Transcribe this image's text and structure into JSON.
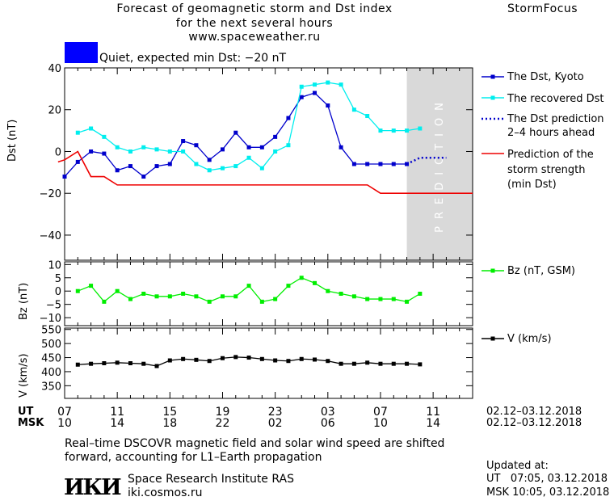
{
  "header": {
    "title_line1": "Forecast of geomagnetic storm and Dst index",
    "title_line2": "for the next several hours",
    "site": "www.spaceweather.ru",
    "brand": "StormFocus"
  },
  "status": {
    "label": "Quiet, expected min Dst: −20 nT",
    "color": "#0000ff"
  },
  "colors": {
    "dst_kyoto": "#0000cc",
    "dst_recovered": "#00eeee",
    "dst_prediction": "#0000cc",
    "storm_strength": "#ee0000",
    "bz": "#00ee00",
    "v": "#000000",
    "prediction_band": "#d9d9d9"
  },
  "chart_data": [
    {
      "type": "line",
      "panel": "dst",
      "ylabel": "Dst (nT)",
      "ylim": [
        -52,
        40
      ],
      "yticks": [
        40,
        20,
        0,
        -20,
        -40
      ],
      "xlim": [
        7,
        38
      ],
      "prediction_region_x": [
        33,
        38
      ],
      "prediction_label": "PREDICTION",
      "series": [
        {
          "name": "The Dst, Kyoto",
          "x": [
            7,
            8,
            9,
            10,
            11,
            12,
            13,
            14,
            15,
            16,
            17,
            18,
            19,
            20,
            21,
            22,
            23,
            24,
            25,
            26,
            27,
            28,
            29,
            30,
            31,
            32,
            33
          ],
          "y": [
            -12,
            -5,
            0,
            -1,
            -9,
            -7,
            -12,
            -7,
            -6,
            5,
            3,
            -4,
            1,
            9,
            2,
            2,
            7,
            16,
            26,
            28,
            22,
            2,
            -6,
            -6,
            -6,
            -6,
            -6
          ]
        },
        {
          "name": "The recovered Dst",
          "x": [
            8,
            9,
            10,
            11,
            12,
            13,
            14,
            15,
            16,
            17,
            18,
            19,
            20,
            21,
            22,
            23,
            24,
            25,
            26,
            27,
            28,
            29,
            30,
            31,
            32,
            33,
            34
          ],
          "y": [
            9,
            11,
            7,
            2,
            0,
            2,
            1,
            0,
            0,
            -6,
            -9,
            -8,
            -7,
            -3,
            -8,
            0,
            3,
            31,
            32,
            33,
            32,
            20,
            17,
            10,
            10,
            10,
            11
          ]
        },
        {
          "name": "The Dst prediction 2–4 hours ahead",
          "x": [
            33,
            34,
            35,
            36
          ],
          "y": [
            -6,
            -3,
            -3,
            -3
          ]
        },
        {
          "name": "Prediction of the storm strength (min Dst)",
          "x": [
            6.5,
            7,
            8,
            9,
            10,
            11,
            12,
            13,
            14,
            15,
            16,
            17,
            18,
            19,
            20,
            21,
            22,
            23,
            24,
            25,
            26,
            27,
            28,
            29,
            30,
            31,
            32,
            33,
            34,
            35,
            36,
            37,
            38
          ],
          "y": [
            -5,
            -4,
            0,
            -12,
            -12,
            -16,
            -16,
            -16,
            -16,
            -16,
            -16,
            -16,
            -16,
            -16,
            -16,
            -16,
            -16,
            -16,
            -16,
            -16,
            -16,
            -16,
            -16,
            -16,
            -16,
            -20,
            -20,
            -20,
            -20,
            -20,
            -20,
            -20,
            -20
          ]
        }
      ]
    },
    {
      "type": "line",
      "panel": "bz",
      "ylabel": "Bz (nT)",
      "ylim": [
        -13,
        11
      ],
      "yticks": [
        10,
        5,
        0,
        -5,
        -10
      ],
      "series": [
        {
          "name": "Bz (nT, GSM)",
          "x": [
            8,
            9,
            10,
            11,
            12,
            13,
            14,
            15,
            16,
            17,
            18,
            19,
            20,
            21,
            22,
            23,
            24,
            25,
            26,
            27,
            28,
            29,
            30,
            31,
            32,
            33,
            34
          ],
          "y": [
            0,
            2,
            -4,
            0,
            -3,
            -1,
            -2,
            -2,
            -1,
            -2,
            -4,
            -2,
            -2,
            2,
            -4,
            -3,
            2,
            5,
            3,
            0,
            -1,
            -2,
            -3,
            -3,
            -3,
            -4,
            -1
          ]
        }
      ]
    },
    {
      "type": "line",
      "panel": "v",
      "ylabel": "V (km/s)",
      "ylim": [
        305,
        555
      ],
      "yticks": [
        550,
        500,
        450,
        400,
        350
      ],
      "series": [
        {
          "name": "V (km/s)",
          "x": [
            8,
            9,
            10,
            11,
            12,
            13,
            14,
            15,
            16,
            17,
            18,
            19,
            20,
            21,
            22,
            23,
            24,
            25,
            26,
            27,
            28,
            29,
            30,
            31,
            32,
            33,
            34
          ],
          "y": [
            425,
            428,
            430,
            432,
            430,
            428,
            420,
            440,
            445,
            442,
            438,
            448,
            452,
            450,
            445,
            440,
            438,
            445,
            443,
            438,
            428,
            428,
            432,
            428,
            428,
            428,
            426
          ]
        }
      ]
    }
  ],
  "xaxis": {
    "ut_label": "UT",
    "msk_label": "MSK",
    "ut_ticks": [
      "07",
      "11",
      "15",
      "19",
      "23",
      "03",
      "07",
      "11"
    ],
    "msk_ticks": [
      "10",
      "14",
      "18",
      "22",
      "02",
      "06",
      "10",
      "14"
    ],
    "ut_range": "02.12–03.12.2018",
    "msk_range": "02.12–03.12.2018"
  },
  "legend": {
    "dst_kyoto": "The Dst, Kyoto",
    "dst_recovered": "The recovered Dst",
    "dst_pred_line1": "The Dst prediction",
    "dst_pred_line2": "2–4 hours ahead",
    "storm_line1": "Prediction of the",
    "storm_line2": "storm strength",
    "storm_line3": "(min Dst)",
    "bz": "Bz (nT, GSM)",
    "v": "V (km/s)"
  },
  "footer": {
    "note_line1": "Real–time DSCOVR magnetic field and solar wind speed are shifted",
    "note_line2": "forward, accounting for L1–Earth propagation",
    "logo_text": "ИКИ",
    "institute": "Space Research Institute RAS",
    "institute_url": "iki.cosmos.ru",
    "updated_label": "Updated at:",
    "updated_ut": "UT   07:05, 03.12.2018",
    "updated_msk": "MSK 10:05, 03.12.2018"
  }
}
